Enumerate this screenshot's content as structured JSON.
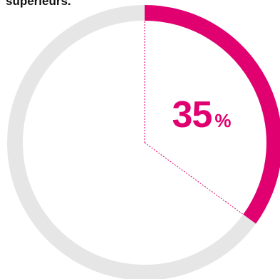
{
  "header": {
    "text": "supérieurs."
  },
  "chart_data": {
    "type": "pie",
    "style": "donut",
    "values": [
      35,
      65
    ],
    "value_label": "35",
    "unit": "%",
    "colors": {
      "highlight": "#E0006F",
      "rest": "#E6E6E6",
      "text": "#E0006F"
    }
  }
}
